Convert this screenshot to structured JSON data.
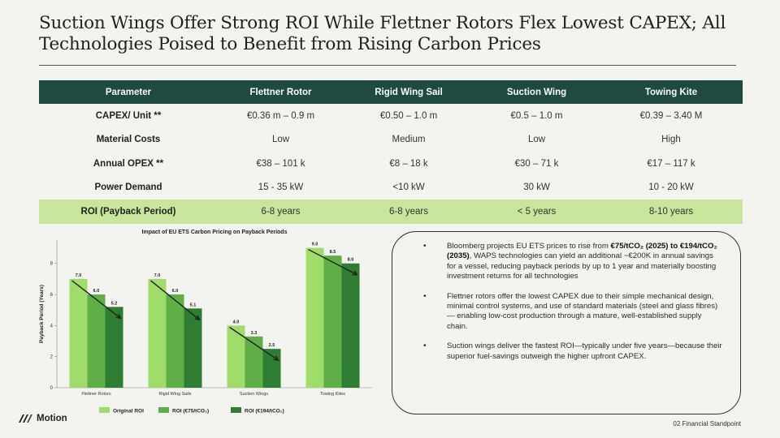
{
  "title": "Suction Wings Offer Strong ROI While Flettner Rotors Flex Lowest CAPEX; All Technologies Poised to Benefit from Rising Carbon Prices",
  "table": {
    "headers": [
      "Parameter",
      "Flettner Rotor",
      "Rigid Wing Sail",
      "Suction Wing",
      "Towing Kite"
    ],
    "rows": [
      [
        "CAPEX/ Unit **",
        "€0.36 m – 0.9 m",
        "€0.50 – 1.0 m",
        "€0.5 – 1.0 m",
        "€0.39 – 3.40 M"
      ],
      [
        "Material Costs",
        "Low",
        "Medium",
        "Low",
        "High"
      ],
      [
        "Annual OPEX **",
        "€38 – 101 k",
        "€8 – 18 k",
        "€30 – 71 k",
        "€17 – 117 k"
      ],
      [
        "Power Demand",
        "15 - 35 kW",
        "<10 kW",
        "30 kW",
        "10 - 20 kW"
      ],
      [
        "ROI (Payback Period)",
        "6-8 years",
        "6-8 years",
        "< 5 years",
        "8-10 years"
      ]
    ]
  },
  "chart_data": {
    "type": "bar",
    "title": "Impact of EU ETS Carbon Pricing on Payback Periods",
    "xlabel": "",
    "ylabel": "Payback Period (Years)",
    "ylim": [
      0,
      9.5
    ],
    "yticks": [
      0,
      2,
      4,
      6,
      8
    ],
    "categories": [
      "Flettner Rotors",
      "Rigid Wing Sails",
      "Suction Wings",
      "Towing Kites"
    ],
    "series": [
      {
        "name": "Original ROI",
        "color": "#9fdc6a",
        "values": [
          7.0,
          7.0,
          4.0,
          9.0
        ]
      },
      {
        "name": "ROI (€75/tCO₂)",
        "color": "#5fae46",
        "values": [
          6.0,
          6.0,
          3.3,
          8.5
        ]
      },
      {
        "name": "ROI (€194/tCO₂)",
        "color": "#2e7d32",
        "values": [
          5.2,
          5.1,
          2.5,
          8.0
        ]
      }
    ],
    "value_labels": [
      [
        "7.0",
        "6.0",
        "5.2"
      ],
      [
        "7.0",
        "6.0",
        "5.1"
      ],
      [
        "4.0",
        "3.3",
        "2.5"
      ],
      [
        "9.0",
        "8.5",
        "8.0"
      ]
    ],
    "grid": false,
    "legend_position": "bottom",
    "annotations": "trend arrows over each group"
  },
  "bullets": {
    "b1_pre": "Bloomberg projects EU ETS prices to rise from ",
    "b1_bold": "€75/tCO₂ (2025) to €194/tCO₂ (2035)",
    "b1_post": ", WAPS technologies can yield an additional ~€200K in annual savings for a vessel, reducing payback periods by up to 1 year and materially boosting investment returns for all technologies",
    "b2": "Flettner rotors offer the lowest CAPEX due to their simple mechanical design, minimal control systems, and use of standard materials (steel and glass fibres) — enabling low-cost production through a mature, well-established supply chain.",
    "b3": "Suction wings deliver the fastest ROI—typically under five years—because their superior fuel-savings outweigh the higher upfront CAPEX.",
    "bullet_char": "•"
  },
  "logo_text": "Motion",
  "footer": "02 Financial Standpoint"
}
